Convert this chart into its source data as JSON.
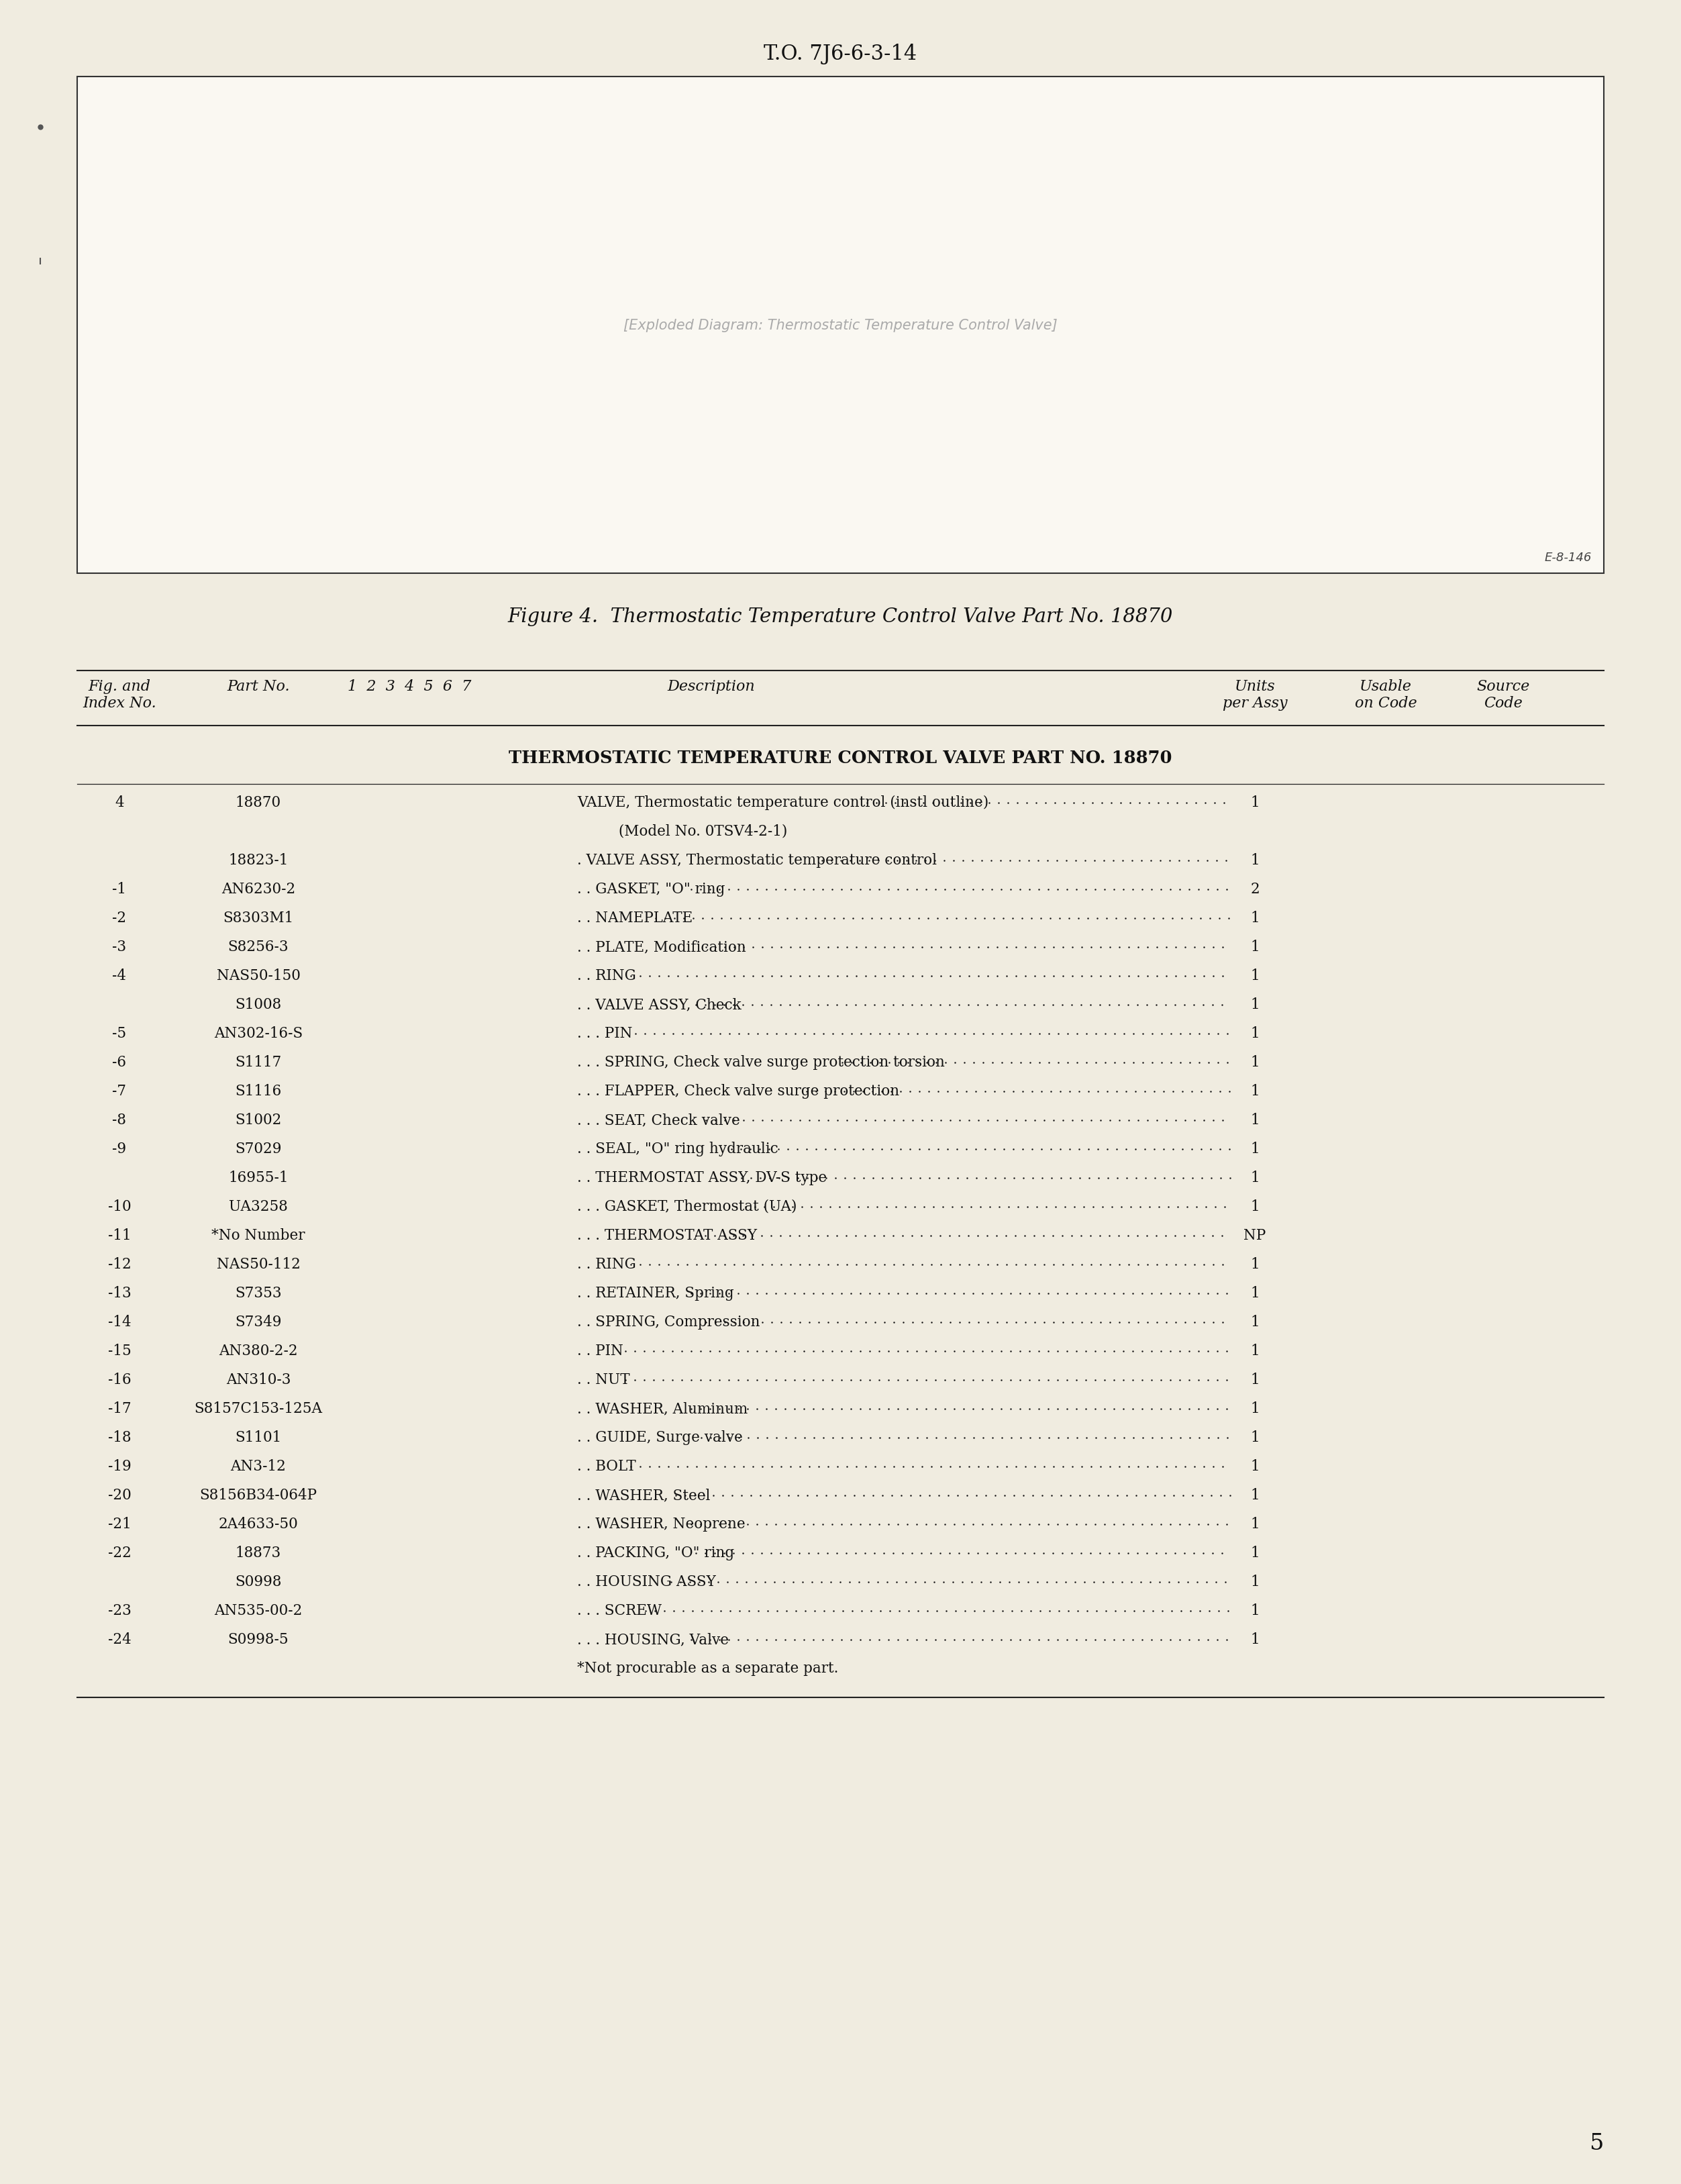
{
  "page_bg": "#f0ece0",
  "header_text": "T.O. 7J6-6-3-14",
  "figure_caption": "Figure 4.  Thermostatic Temperature Control Valve Part No. 18870",
  "table_title": "THERMOSTATIC TEMPERATURE CONTROL VALVE PART NO. 18870",
  "page_number": "5",
  "e_ref": "E-8-146",
  "rows": [
    [
      "4",
      "18870",
      "VALVE, Thermostatic temperature control (instl outline)",
      "1"
    ],
    [
      "",
      "",
      "         (Model No. 0TSV4-2-1)",
      ""
    ],
    [
      "",
      "18823-1",
      ". VALVE ASSY, Thermostatic temperature control",
      "1"
    ],
    [
      "-1",
      "AN6230-2",
      ". . GASKET, \"O\" ring",
      "2"
    ],
    [
      "-2",
      "S8303M1",
      ". . NAMEPLATE",
      "1"
    ],
    [
      "-3",
      "S8256-3",
      ". . PLATE, Modification",
      "1"
    ],
    [
      "-4",
      "NAS50-150",
      ". . RING",
      "1"
    ],
    [
      "",
      "S1008",
      ". . VALVE ASSY, Check",
      "1"
    ],
    [
      "-5",
      "AN302-16-S",
      ". . . PIN",
      "1"
    ],
    [
      "-6",
      "S1117",
      ". . . SPRING, Check valve surge protection torsion",
      "1"
    ],
    [
      "-7",
      "S1116",
      ". . . FLAPPER, Check valve surge protection",
      "1"
    ],
    [
      "-8",
      "S1002",
      ". . . SEAT, Check valve",
      "1"
    ],
    [
      "-9",
      "S7029",
      ". . SEAL, \"O\" ring hydraulic",
      "1"
    ],
    [
      "",
      "16955-1",
      ". . THERMOSTAT ASSY, DV-S type",
      "1"
    ],
    [
      "-10",
      "UA3258",
      ". . . GASKET, Thermostat (UA)",
      "1"
    ],
    [
      "-11",
      "*No Number",
      ". . . THERMOSTAT ASSY",
      "NP"
    ],
    [
      "-12",
      "NAS50-112",
      ". . RING",
      "1"
    ],
    [
      "-13",
      "S7353",
      ". . RETAINER, Spring",
      "1"
    ],
    [
      "-14",
      "S7349",
      ". . SPRING, Compression",
      "1"
    ],
    [
      "-15",
      "AN380-2-2",
      ". . PIN",
      "1"
    ],
    [
      "-16",
      "AN310-3",
      ". . NUT",
      "1"
    ],
    [
      "-17",
      "S8157C153-125A",
      ". . WASHER, Aluminum",
      "1"
    ],
    [
      "-18",
      "S1101",
      ". . GUIDE, Surge valve",
      "1"
    ],
    [
      "-19",
      "AN3-12",
      ". . BOLT",
      "1"
    ],
    [
      "-20",
      "S8156B34-064P",
      ". . WASHER, Steel",
      "1"
    ],
    [
      "-21",
      "2A4633-50",
      ". . WASHER, Neoprene",
      "1"
    ],
    [
      "-22",
      "18873",
      ". . PACKING, \"O\" ring",
      "1"
    ],
    [
      "",
      "S0998",
      ". . HOUSING ASSY",
      "1"
    ],
    [
      "-23",
      "AN535-00-2",
      ". . . SCREW",
      "1"
    ],
    [
      "-24",
      "S0998-5",
      ". . . HOUSING, Valve",
      "1"
    ],
    [
      "",
      "",
      "*Not procurable as a separate part.",
      ""
    ]
  ]
}
